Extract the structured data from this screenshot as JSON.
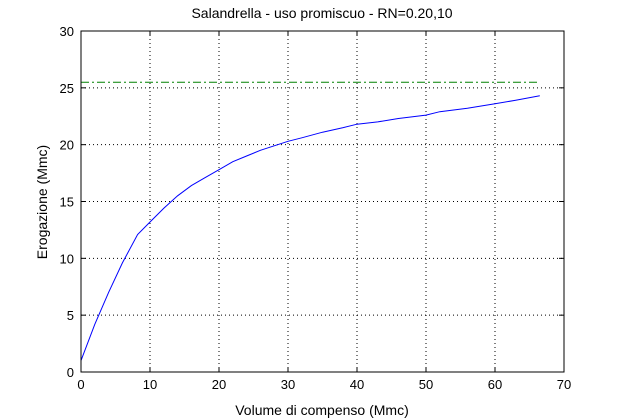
{
  "chart_data": {
    "type": "line",
    "title": "Salandrella  -  uso promiscuo  -   RN=0.20,10",
    "xlabel": "Volume di compenso (Mmc)",
    "ylabel": "Erogazione (Mmc)",
    "xlim": [
      0,
      70
    ],
    "ylim": [
      0,
      30
    ],
    "xticks": [
      0,
      10,
      20,
      30,
      40,
      50,
      60,
      70
    ],
    "yticks": [
      0,
      5,
      10,
      15,
      20,
      25,
      30
    ],
    "grid": true,
    "series": [
      {
        "color": "#0000ff",
        "style": "solid",
        "x": [
          0,
          2,
          4,
          6,
          8.2,
          10,
          12,
          14,
          16,
          18,
          20,
          22,
          24,
          26,
          28,
          30,
          32,
          35,
          38,
          40,
          43,
          46,
          50,
          52,
          56,
          60,
          63,
          66.5
        ],
        "y": [
          1,
          4.2,
          7.0,
          9.6,
          12.1,
          13.2,
          14.4,
          15.5,
          16.4,
          17.1,
          17.8,
          18.5,
          19.0,
          19.5,
          19.9,
          20.3,
          20.6,
          21.1,
          21.5,
          21.8,
          22.0,
          22.3,
          22.6,
          22.9,
          23.2,
          23.6,
          23.9,
          24.3
        ]
      },
      {
        "color": "#008000",
        "style": "dash-dot",
        "x": [
          0,
          66.5
        ],
        "y": [
          25.5,
          25.5
        ]
      }
    ]
  }
}
